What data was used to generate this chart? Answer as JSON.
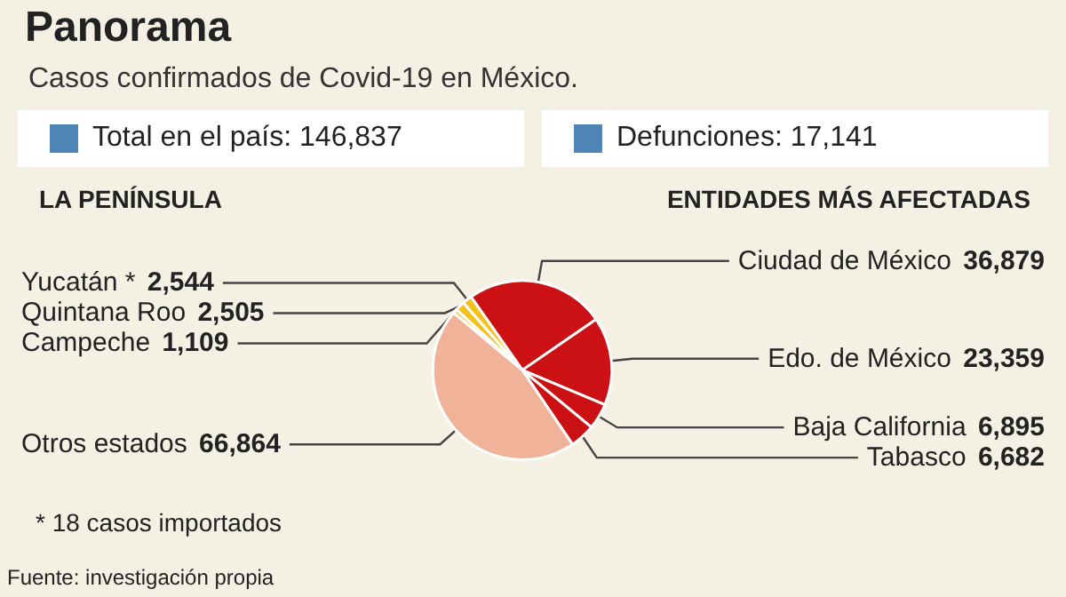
{
  "chart_data": {
    "type": "pie",
    "title": "Panorama",
    "subtitle": "Casos confirmados de Covid-19 en México.",
    "categories": [
      "Ciudad de México",
      "Edo. de México",
      "Baja California",
      "Tabasco",
      "Otros estados",
      "Campeche",
      "Quintana Roo",
      "Yucatán *"
    ],
    "values": [
      36879,
      23359,
      6895,
      6682,
      66864,
      1109,
      2505,
      2544
    ],
    "colors": [
      "#cc1114",
      "#cc1114",
      "#cc1114",
      "#cc1114",
      "#f0b39a",
      "#f2c21b",
      "#f2c21b",
      "#f2c21b"
    ],
    "value_labels": [
      "36,879",
      "23,359",
      "6,895",
      "6,682",
      "66,864",
      "1,109",
      "2,505",
      "2,544"
    ],
    "annotations": [
      "Total en el país: 146,837",
      "Defunciones: 17,141",
      "LA PENÍNSULA",
      "ENTIDADES MÁS AFECTADAS",
      "* 18 casos importados",
      "Fuente: investigación propia"
    ]
  }
}
